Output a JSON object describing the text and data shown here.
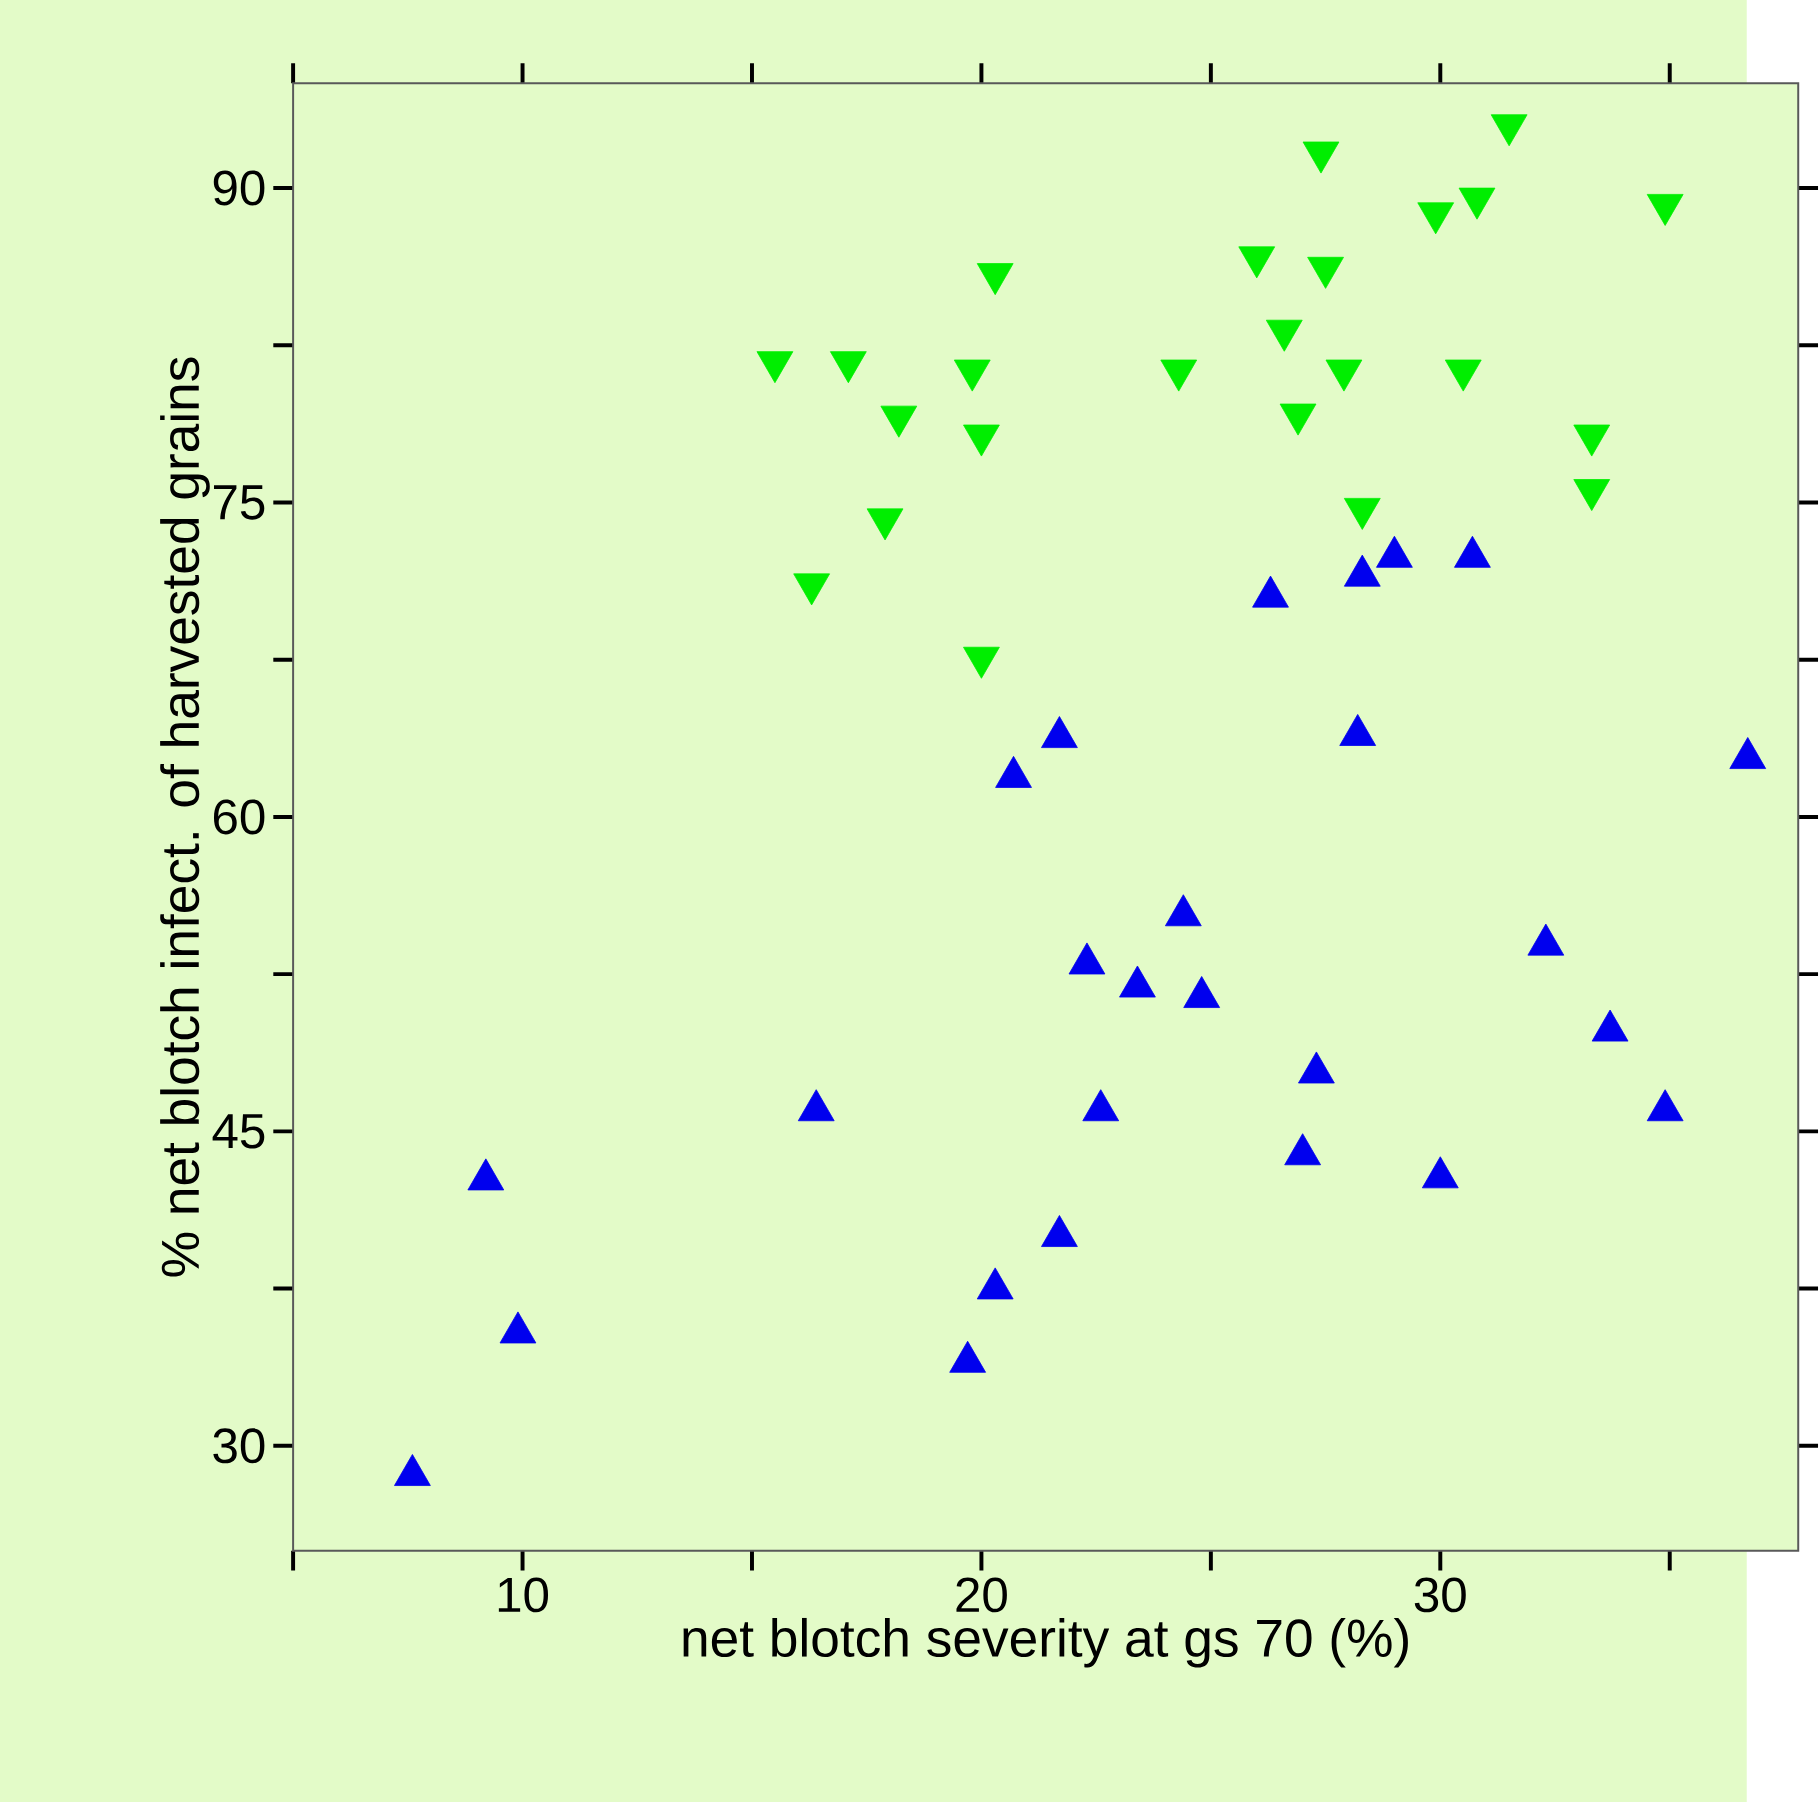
{
  "chart_data": {
    "type": "scatter",
    "xlabel": "net blotch severity at gs 70 (%)",
    "ylabel": "% net blotch infect. of harvested grains",
    "xlim": [
      5,
      37.8
    ],
    "ylim": [
      25,
      95
    ],
    "xticks": [
      {
        "value": 5,
        "label": null
      },
      10,
      {
        "value": 15,
        "label": null
      },
      20,
      {
        "value": 25,
        "label": null
      },
      30,
      {
        "value": 35,
        "label": null
      }
    ],
    "yticks": [
      30,
      {
        "value": 37.5,
        "label": null
      },
      45,
      {
        "value": 52.5,
        "label": null
      },
      60,
      {
        "value": 67.5,
        "label": null
      },
      75,
      {
        "value": 82.5,
        "label": null
      },
      90
    ],
    "grid": false,
    "series": [
      {
        "color": "#00ee00",
        "marker": "triangle-down",
        "x": [
          15.5,
          17.1,
          17.9,
          18.2,
          16.3,
          19.8,
          20.0,
          20.0,
          20.3,
          24.3,
          26.0,
          26.6,
          26.9,
          27.4,
          27.5,
          27.9,
          28.3,
          29.9,
          30.8,
          30.5,
          31.5,
          33.3,
          33.3,
          34.9
        ],
        "values": [
          81.7,
          81.7,
          74.2,
          79.1,
          71.1,
          81.3,
          78.2,
          67.6,
          85.9,
          81.3,
          86.7,
          83.2,
          79.2,
          91.7,
          86.2,
          81.3,
          74.7,
          88.8,
          89.5,
          81.3,
          93.0,
          78.2,
          75.6,
          89.2
        ]
      },
      {
        "color": "#0000ee",
        "marker": "triangle",
        "x": [
          7.6,
          9.2,
          9.9,
          16.4,
          19.7,
          20.3,
          20.7,
          21.7,
          21.7,
          22.3,
          22.6,
          23.4,
          24.4,
          24.8,
          26.3,
          27.0,
          27.3,
          28.2,
          28.3,
          29.0,
          30.0,
          30.7,
          32.3,
          33.7,
          34.9,
          36.7
        ],
        "values": [
          28.6,
          42.7,
          35.4,
          46.0,
          34.0,
          37.5,
          61.9,
          40.0,
          63.8,
          53.0,
          46.0,
          51.9,
          55.3,
          51.4,
          70.5,
          43.9,
          47.8,
          63.9,
          71.5,
          72.4,
          42.8,
          72.4,
          53.9,
          49.8,
          46.0,
          62.8
        ]
      }
    ]
  }
}
